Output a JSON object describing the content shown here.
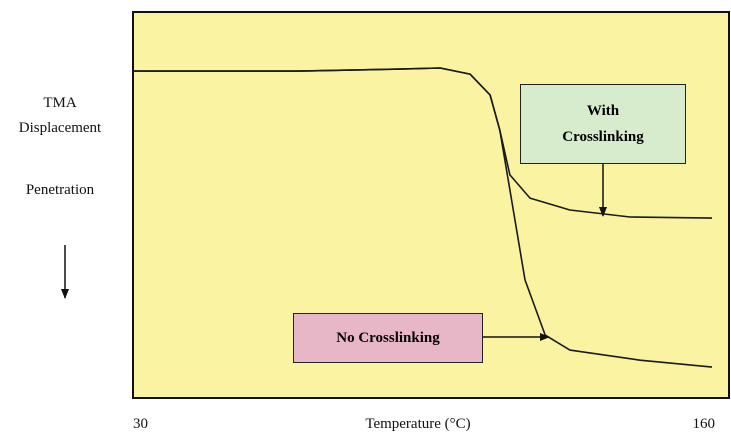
{
  "chart_data": {
    "type": "line",
    "x_label": "Temperature (°C)",
    "y_label": "TMA Displacement",
    "annotations": [
      "Penetration"
    ],
    "xlim": [
      30,
      160
    ],
    "xticks": [
      30,
      160
    ],
    "ylim": [
      0,
      100
    ],
    "background": "#faf4a2",
    "series": [
      {
        "name": "With Crosslinking",
        "color": "#1a1a1a",
        "box_color": "#d7ebcd",
        "x": [
          30,
          66.4,
          88.2,
          97.0,
          103.5,
          107.9,
          110.0,
          112.2,
          116.6,
          125.3,
          138.4,
          156.3
        ],
        "values": [
          84.7,
          84.7,
          85.2,
          85.5,
          83.9,
          78.5,
          69.4,
          57.8,
          51.8,
          48.7,
          46.9,
          46.6
        ]
      },
      {
        "name": "No Crosslinking",
        "color": "#1a1a1a",
        "box_color": "#e8b7c7",
        "x": [
          30,
          66.4,
          88.2,
          97.0,
          103.5,
          107.9,
          110.0,
          112.2,
          115.5,
          119.9,
          125.3,
          140.6,
          156.3
        ],
        "values": [
          84.7,
          84.7,
          85.2,
          85.5,
          83.9,
          78.5,
          69.4,
          53.9,
          30.6,
          16.3,
          12.4,
          9.8,
          8.0
        ]
      }
    ]
  }
}
